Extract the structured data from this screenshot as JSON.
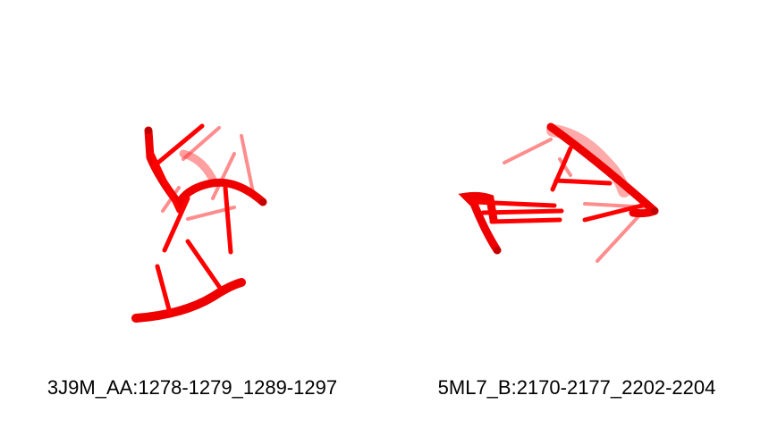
{
  "colors": {
    "background": "#ffffff",
    "backbone": "#ee0000",
    "backbone_shade": "#b80000",
    "base": "#ff1a1a",
    "caption_text": "#000000"
  },
  "panels": [
    {
      "label": "3J9M_AA:1278-1279_1289-1297",
      "structure_icon": "rna-cartoon-icon"
    },
    {
      "label": "5ML7_B:2170-2177_2202-2204",
      "structure_icon": "rna-cartoon-icon"
    }
  ]
}
